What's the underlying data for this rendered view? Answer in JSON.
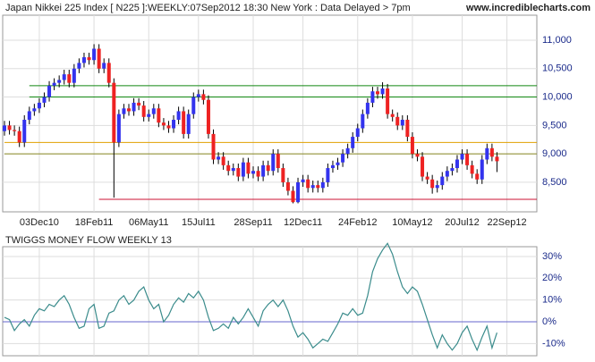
{
  "chart_data": [
    {
      "type": "candlestick",
      "title": "Japan Nikkei 225 Index [ N225 ]:WEEKLY:07Sep2012 18:30 New York : Data Delayed > 7pm",
      "source": "www.incrediblecharts.com",
      "categories": [
        null,
        null,
        null,
        null,
        null,
        null,
        null,
        "03Dec10",
        null,
        null,
        null,
        null,
        null,
        null,
        null,
        null,
        null,
        null,
        "18Feb11",
        null,
        null,
        null,
        null,
        null,
        null,
        null,
        null,
        null,
        null,
        "06May11",
        null,
        null,
        null,
        null,
        null,
        null,
        null,
        null,
        null,
        "15Jul11",
        null,
        null,
        null,
        null,
        null,
        null,
        null,
        null,
        null,
        null,
        "28Sep11",
        null,
        null,
        null,
        null,
        null,
        null,
        null,
        null,
        null,
        "12Dec11",
        null,
        null,
        null,
        null,
        null,
        null,
        null,
        null,
        null,
        null,
        "24Feb12",
        null,
        null,
        null,
        null,
        null,
        null,
        null,
        null,
        null,
        null,
        "10May12",
        null,
        null,
        null,
        null,
        null,
        null,
        null,
        null,
        null,
        "20Jul12",
        null,
        null,
        null,
        null,
        null,
        null,
        null,
        null,
        "22Sep12"
      ],
      "open": [
        9400,
        9500,
        9420,
        9400,
        9200,
        9600,
        9750,
        9800,
        9900,
        10000,
        10200,
        10250,
        10300,
        10400,
        10250,
        10500,
        10600,
        10700,
        10650,
        10850,
        10500,
        10600,
        10250,
        9200,
        9700,
        9800,
        9750,
        9900,
        9850,
        9650,
        9700,
        9800,
        9550,
        9500,
        9450,
        9600,
        9750,
        9350,
        9700,
        10000,
        10050,
        9950,
        9350,
        8900,
        8950,
        8800,
        8700,
        8750,
        8600,
        8850,
        8650,
        8700,
        8600,
        8800,
        8700,
        9000,
        8750,
        8500,
        8350,
        8150,
        8500,
        8550,
        8400,
        8450,
        8400,
        8500,
        8750,
        8800,
        8850,
        9000,
        9100,
        9300,
        9450,
        9700,
        9900,
        10100,
        10050,
        10150,
        9700,
        9650,
        9500,
        9600,
        9300,
        9000,
        8950,
        8600,
        8550,
        8400,
        8450,
        8600,
        8700,
        8750,
        8900,
        9000,
        8800,
        8650,
        8550,
        8900,
        9100,
        8950,
        null,
        null
      ],
      "high": [
        9580,
        9580,
        9500,
        9480,
        9680,
        9830,
        9880,
        9980,
        10080,
        10280,
        10330,
        10380,
        10480,
        10480,
        10580,
        10680,
        10780,
        10780,
        10930,
        10930,
        10680,
        10680,
        10330,
        9780,
        9880,
        9880,
        9980,
        9980,
        9930,
        9780,
        9880,
        9880,
        9630,
        9580,
        9680,
        9830,
        9830,
        9780,
        10080,
        10130,
        10130,
        10030,
        9430,
        9030,
        9030,
        8880,
        8830,
        8830,
        8930,
        8930,
        8780,
        8780,
        8880,
        8880,
        9080,
        9080,
        8830,
        8580,
        8430,
        8580,
        8630,
        8630,
        8530,
        8530,
        8580,
        8830,
        8880,
        8930,
        9080,
        9180,
        9380,
        9530,
        9780,
        9980,
        10180,
        10180,
        10260,
        10230,
        9780,
        9730,
        9680,
        9680,
        9380,
        9080,
        9030,
        8680,
        8630,
        8530,
        8680,
        8780,
        8830,
        8980,
        9080,
        9080,
        8880,
        8730,
        8980,
        9180,
        9180,
        9030,
        null,
        null
      ],
      "low": [
        9320,
        9340,
        9320,
        9120,
        9120,
        9520,
        9670,
        9720,
        9820,
        9920,
        10120,
        10170,
        10220,
        10170,
        10170,
        10420,
        10520,
        10570,
        10570,
        10420,
        10420,
        10170,
        8230,
        9120,
        9620,
        9670,
        9670,
        9770,
        9570,
        9570,
        9620,
        9470,
        9420,
        9370,
        9370,
        9520,
        9270,
        9270,
        9620,
        9920,
        9870,
        9270,
        8820,
        8820,
        8720,
        8620,
        8620,
        8520,
        8520,
        8570,
        8570,
        8520,
        8520,
        8620,
        8620,
        8670,
        8420,
        8270,
        8130,
        8130,
        8420,
        8320,
        8320,
        8320,
        8320,
        8420,
        8670,
        8720,
        8770,
        8920,
        9020,
        9220,
        9370,
        9620,
        9820,
        9970,
        9970,
        9620,
        9570,
        9420,
        9420,
        9220,
        8920,
        8870,
        8520,
        8470,
        8300,
        8320,
        8370,
        8520,
        8620,
        8670,
        8820,
        8720,
        8570,
        8470,
        8470,
        8820,
        8870,
        8680,
        null,
        null
      ],
      "close": [
        9500,
        9420,
        9400,
        9200,
        9600,
        9750,
        9800,
        9900,
        10000,
        10200,
        10250,
        10300,
        10400,
        10250,
        10500,
        10600,
        10700,
        10650,
        10850,
        10500,
        10600,
        10250,
        9200,
        9700,
        9800,
        9750,
        9900,
        9850,
        9650,
        9700,
        9800,
        9550,
        9500,
        9450,
        9600,
        9750,
        9350,
        9700,
        10000,
        10050,
        9950,
        9350,
        8900,
        8950,
        8800,
        8700,
        8750,
        8600,
        8850,
        8650,
        8700,
        8600,
        8800,
        8700,
        9000,
        8750,
        8500,
        8350,
        8150,
        8500,
        8550,
        8400,
        8450,
        8400,
        8500,
        8750,
        8800,
        8850,
        9000,
        9100,
        9300,
        9450,
        9700,
        9900,
        10100,
        10050,
        10150,
        9700,
        9650,
        9500,
        9600,
        9300,
        9000,
        8950,
        8600,
        8550,
        8400,
        8450,
        8600,
        8700,
        8750,
        8900,
        9000,
        8800,
        8650,
        8550,
        8900,
        9100,
        8950,
        8870,
        null,
        null
      ],
      "up_color": "#3333ee",
      "down_color": "#ee2222",
      "ylim": [
        7980,
        11440
      ],
      "yticks": [
        {
          "value": 8500,
          "label": "8,500"
        },
        {
          "value": 9000,
          "label": "9,000"
        },
        {
          "value": 9500,
          "label": "9,500"
        },
        {
          "value": 10000,
          "label": "10,000"
        },
        {
          "value": 10500,
          "label": "10,500"
        },
        {
          "value": 11000,
          "label": "11,000"
        }
      ],
      "lines": [
        {
          "value": 10200,
          "color": "#118811",
          "from": 5
        },
        {
          "value": 10000,
          "color": "#118811",
          "from": 5
        },
        {
          "value": 9200,
          "color": "#e0a000",
          "from": 0
        },
        {
          "value": 9000,
          "color": "#888822",
          "from": 0
        },
        {
          "value": 8200,
          "color": "#cc1133",
          "from": 19
        }
      ],
      "grid": true
    },
    {
      "type": "line",
      "title": "TWIGGS MONEY FLOW WEEKLY 13",
      "series": [
        {
          "color": "#3b8c8c",
          "values": [
            2,
            1,
            -4,
            -1,
            1,
            -2,
            3,
            6,
            5,
            8,
            7,
            10,
            12,
            8,
            2,
            -3,
            -2,
            6,
            8,
            -3,
            -2,
            4,
            5,
            10,
            12,
            8,
            10,
            14,
            16,
            10,
            6,
            8,
            0,
            3,
            8,
            11,
            9,
            13,
            11,
            14,
            10,
            2,
            -4,
            -3,
            -1,
            -3,
            2,
            -1,
            2,
            6,
            2,
            -2,
            5,
            8,
            10,
            7,
            10,
            5,
            -2,
            -7,
            -5,
            -8,
            -12,
            -10,
            -8,
            -9,
            -5,
            -1,
            4,
            3,
            6,
            3,
            4,
            12,
            23,
            29,
            33,
            36,
            31,
            23,
            16,
            13,
            16,
            14,
            8,
            1,
            -6,
            -12,
            -6,
            -10,
            -13,
            -10,
            -5,
            -2,
            -8,
            -13,
            -7,
            -2,
            -12,
            -5,
            null,
            null
          ]
        }
      ],
      "zero_color": "#6666cc",
      "ylim": [
        -15.6,
        34.5
      ],
      "yticks": [
        {
          "value": -10,
          "label": "-10%"
        },
        {
          "value": 0,
          "label": "0%"
        },
        {
          "value": 10,
          "label": "10%"
        },
        {
          "value": 20,
          "label": "20%"
        },
        {
          "value": 30,
          "label": "30%"
        }
      ],
      "grid": true
    }
  ]
}
